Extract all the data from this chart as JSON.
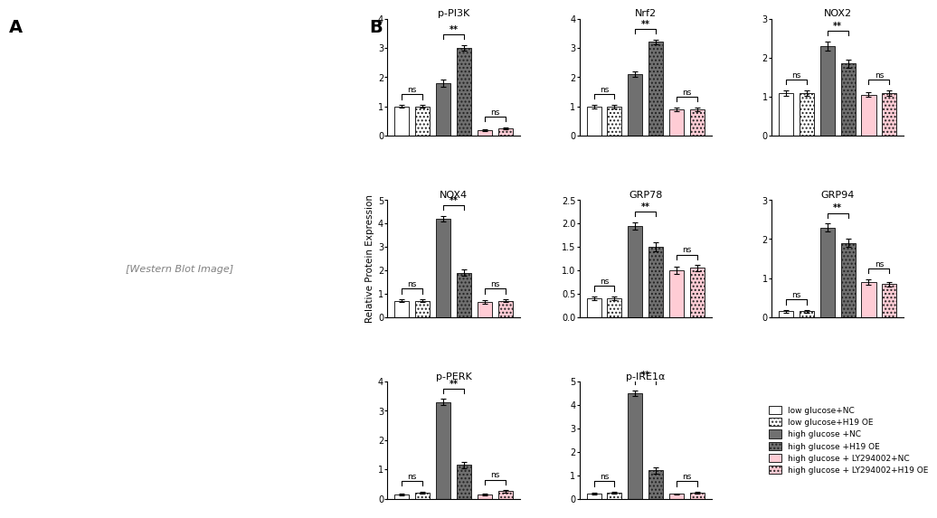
{
  "panels": [
    {
      "title": "p-PI3K",
      "ylim": [
        0,
        4
      ],
      "yticks": [
        0,
        1,
        2,
        3,
        4
      ],
      "values": [
        1.0,
        1.0,
        1.8,
        3.0,
        0.2,
        0.25
      ],
      "errors": [
        0.05,
        0.05,
        0.12,
        0.1,
        0.03,
        0.04
      ],
      "sig_pairs": [
        [
          2,
          3,
          "**"
        ],
        [
          4,
          5,
          "ns"
        ]
      ],
      "ns_pairs": [
        [
          0,
          1,
          "ns"
        ]
      ]
    },
    {
      "title": "Nrf2",
      "ylim": [
        0,
        4
      ],
      "yticks": [
        0,
        1,
        2,
        3,
        4
      ],
      "values": [
        1.0,
        1.0,
        2.1,
        3.2,
        0.9,
        0.9
      ],
      "errors": [
        0.06,
        0.06,
        0.1,
        0.08,
        0.07,
        0.06
      ],
      "sig_pairs": [
        [
          2,
          3,
          "**"
        ],
        [
          4,
          5,
          "ns"
        ]
      ],
      "ns_pairs": [
        [
          0,
          1,
          "ns"
        ]
      ]
    },
    {
      "title": "NOX2",
      "ylim": [
        0,
        3
      ],
      "yticks": [
        0,
        1,
        2,
        3
      ],
      "values": [
        1.1,
        1.1,
        2.3,
        1.85,
        1.05,
        1.1
      ],
      "errors": [
        0.07,
        0.07,
        0.12,
        0.1,
        0.06,
        0.07
      ],
      "sig_pairs": [
        [
          2,
          3,
          "**"
        ],
        [
          4,
          5,
          "ns"
        ]
      ],
      "ns_pairs": [
        [
          0,
          1,
          "ns"
        ]
      ]
    },
    {
      "title": "NOX4",
      "ylim": [
        0,
        5
      ],
      "yticks": [
        0,
        1,
        2,
        3,
        4,
        5
      ],
      "values": [
        0.7,
        0.7,
        4.2,
        1.9,
        0.65,
        0.7
      ],
      "errors": [
        0.06,
        0.06,
        0.12,
        0.12,
        0.06,
        0.06
      ],
      "sig_pairs": [
        [
          2,
          3,
          "**"
        ],
        [
          4,
          5,
          "ns"
        ]
      ],
      "ns_pairs": [
        [
          0,
          1,
          "ns"
        ]
      ]
    },
    {
      "title": "GRP78",
      "ylim": [
        0,
        2.5
      ],
      "yticks": [
        0,
        0.5,
        1.0,
        1.5,
        2.0,
        2.5
      ],
      "values": [
        0.4,
        0.4,
        1.95,
        1.5,
        1.0,
        1.05
      ],
      "errors": [
        0.04,
        0.04,
        0.08,
        0.1,
        0.07,
        0.06
      ],
      "sig_pairs": [
        [
          2,
          3,
          "**"
        ],
        [
          4,
          5,
          "ns"
        ]
      ],
      "ns_pairs": [
        [
          0,
          1,
          "ns"
        ]
      ]
    },
    {
      "title": "GRP94",
      "ylim": [
        0,
        3
      ],
      "yticks": [
        0,
        1,
        2,
        3
      ],
      "values": [
        0.15,
        0.15,
        2.3,
        1.9,
        0.9,
        0.85
      ],
      "errors": [
        0.03,
        0.03,
        0.1,
        0.1,
        0.07,
        0.06
      ],
      "sig_pairs": [
        [
          2,
          3,
          "**"
        ],
        [
          4,
          5,
          "ns"
        ]
      ],
      "ns_pairs": [
        [
          0,
          1,
          "ns"
        ]
      ]
    },
    {
      "title": "p-PERK",
      "ylim": [
        0,
        4
      ],
      "yticks": [
        0,
        1,
        2,
        3,
        4
      ],
      "values": [
        0.15,
        0.2,
        3.3,
        1.15,
        0.15,
        0.25
      ],
      "errors": [
        0.03,
        0.04,
        0.1,
        0.1,
        0.03,
        0.04
      ],
      "sig_pairs": [
        [
          2,
          3,
          "**"
        ],
        [
          4,
          5,
          "ns"
        ]
      ],
      "ns_pairs": [
        [
          0,
          1,
          "ns"
        ]
      ]
    },
    {
      "title": "p-IRE1α",
      "ylim": [
        0,
        5
      ],
      "yticks": [
        0,
        1,
        2,
        3,
        4,
        5
      ],
      "values": [
        0.2,
        0.25,
        4.5,
        1.2,
        0.2,
        0.25
      ],
      "errors": [
        0.04,
        0.04,
        0.12,
        0.12,
        0.03,
        0.04
      ],
      "sig_pairs": [
        [
          2,
          3,
          "**"
        ],
        [
          4,
          5,
          "ns"
        ]
      ],
      "ns_pairs": [
        [
          0,
          1,
          "ns"
        ]
      ]
    }
  ],
  "bar_colors": [
    "white",
    "checkered_light",
    "gray",
    "checkered_dark",
    "pink",
    "checkered_pink"
  ],
  "bar_colors_hex": [
    "#ffffff",
    "#cccccc",
    "#808080",
    "#555555",
    "#ffb6c1",
    "#bbbbbb"
  ],
  "legend_labels": [
    "low glucose+NC",
    "low glucose+H19 OE",
    "high glucose +NC",
    "high glucose +H19 OE",
    "high glucose + LY294002+NC",
    "high glucose + LY294002+H19 OE"
  ],
  "ylabel": "Relative Protein Expression",
  "panel_A_label": "A",
  "panel_B_label": "B"
}
